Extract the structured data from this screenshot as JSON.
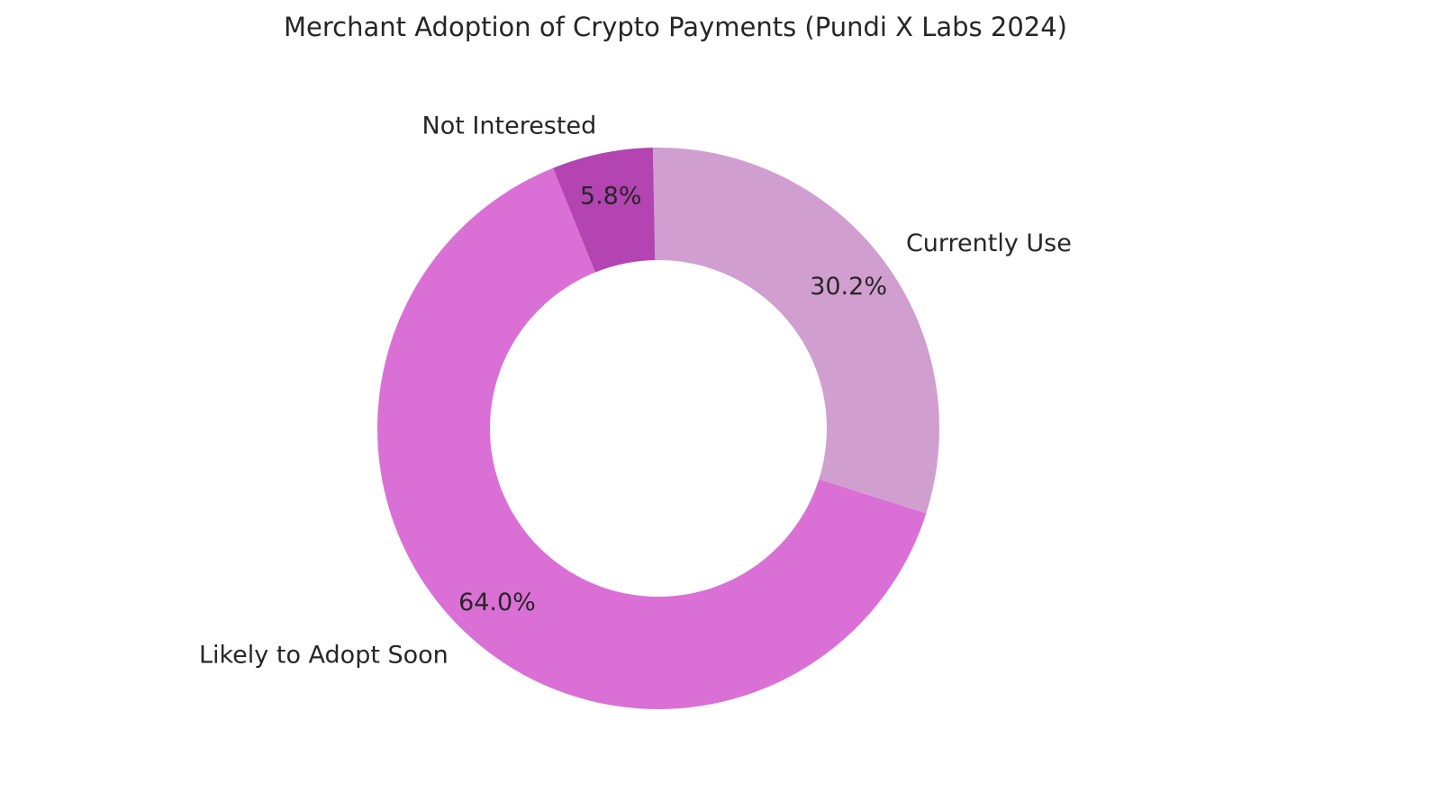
{
  "chart_data": {
    "type": "pie",
    "variant": "donut",
    "title": "Merchant Adoption of Crypto Payments (Pundi X Labs 2024)",
    "legend": "none",
    "slices": [
      {
        "label": "Likely to Adopt Soon",
        "value": 64.0,
        "pct_label": "64.0%",
        "color": "#da70d6"
      },
      {
        "label": "Currently Use",
        "value": 30.2,
        "pct_label": "30.2%",
        "color": "#d19fcf"
      },
      {
        "label": "Not Interested",
        "value": 5.8,
        "pct_label": "5.8%",
        "color": "#b444b2"
      }
    ]
  }
}
